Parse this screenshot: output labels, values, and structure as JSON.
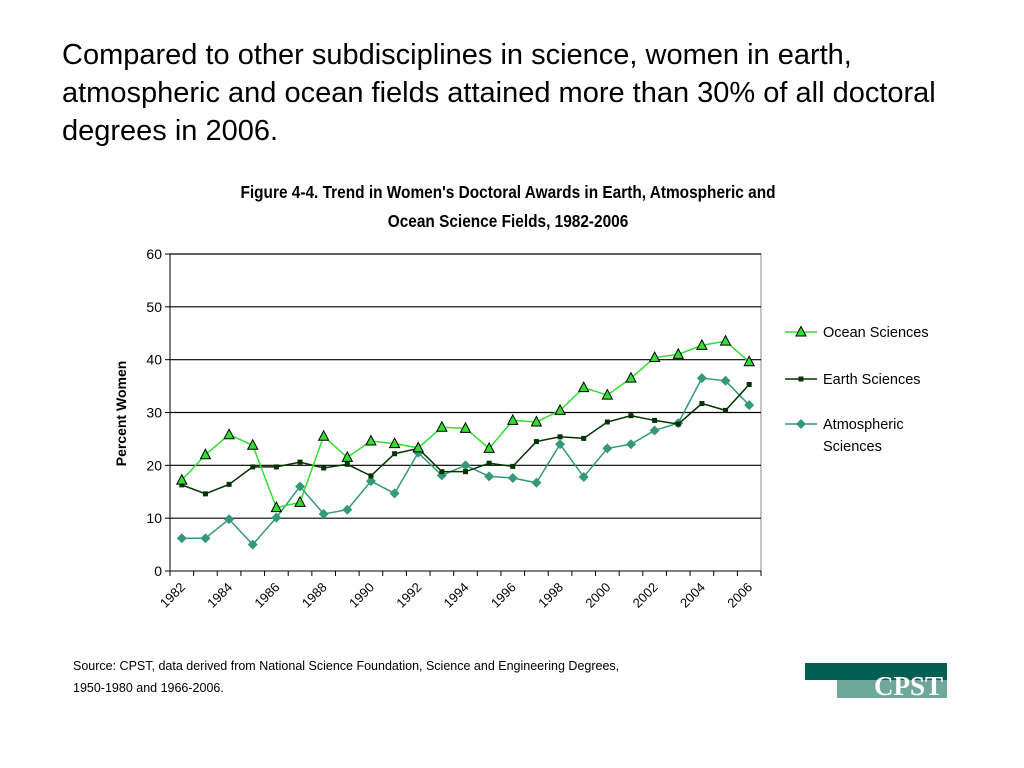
{
  "headline": "Compared to other subdisciplines in science, women in earth, atmospheric and ocean fields attained more than 30% of all doctoral degrees in 2006.",
  "figure": {
    "title_line1": "Figure 4-4. Trend in Women's Doctoral Awards in Earth, Atmospheric and",
    "title_line2": "Ocean Science Fields, 1982-2006"
  },
  "chart_data": {
    "type": "line",
    "title": "Figure 4-4. Trend in Women's Doctoral Awards in Earth, Atmospheric and Ocean Science Fields, 1982-2006",
    "xlabel": "",
    "ylabel": "Percent Women",
    "x": [
      1982,
      1983,
      1984,
      1985,
      1986,
      1987,
      1988,
      1989,
      1990,
      1991,
      1992,
      1993,
      1994,
      1995,
      1996,
      1997,
      1998,
      1999,
      2000,
      2001,
      2002,
      2003,
      2004,
      2005,
      2006
    ],
    "x_tick_labels": [
      "1982",
      "1984",
      "1986",
      "1988",
      "1990",
      "1992",
      "1994",
      "1996",
      "1998",
      "2000",
      "2002",
      "2004",
      "2006"
    ],
    "ylim": [
      0,
      60
    ],
    "y_ticks": [
      0,
      10,
      20,
      30,
      40,
      50,
      60
    ],
    "grid": "horizontal",
    "legend_position": "right",
    "series": [
      {
        "name": "Ocean Sciences",
        "marker": "triangle",
        "color": "#33dd33",
        "values": [
          17.2,
          22.0,
          25.8,
          23.8,
          12.0,
          13.0,
          25.5,
          21.5,
          24.6,
          24.1,
          23.3,
          27.2,
          27.0,
          23.2,
          28.5,
          28.2,
          30.4,
          34.7,
          33.3,
          36.5,
          40.4,
          41.0,
          42.7,
          43.5,
          39.6
        ]
      },
      {
        "name": "Earth Sciences",
        "marker": "square",
        "color": "#003300",
        "values": [
          16.3,
          14.6,
          16.4,
          19.7,
          19.7,
          20.6,
          19.5,
          20.2,
          18.0,
          22.2,
          23.2,
          18.8,
          18.8,
          20.4,
          19.8,
          24.5,
          25.4,
          25.1,
          28.2,
          29.4,
          28.5,
          27.8,
          31.7,
          30.4,
          35.3
        ]
      },
      {
        "name": "Atmospheric Sciences",
        "marker": "diamond",
        "color": "#339977",
        "values": [
          6.2,
          6.2,
          9.8,
          5.0,
          10.1,
          16.0,
          10.8,
          11.6,
          17.0,
          14.7,
          22.4,
          18.1,
          20.0,
          17.9,
          17.6,
          16.7,
          24.0,
          17.8,
          23.2,
          24.0,
          26.6,
          28.0,
          36.5,
          36.0,
          31.4
        ]
      }
    ]
  },
  "legend": {
    "ocean": "Ocean Sciences",
    "earth": "Earth Sciences",
    "atmos_line1": "Atmospheric",
    "atmos_line2": "Sciences"
  },
  "source_line1": "Source: CPST, data derived from National Science Foundation, Science and Engineering Degrees,",
  "source_line2": "1950-1980 and 1966-2006.",
  "logo": {
    "text": "CPST",
    "color_dark": "#005e52",
    "color_light": "#6fa79c"
  }
}
